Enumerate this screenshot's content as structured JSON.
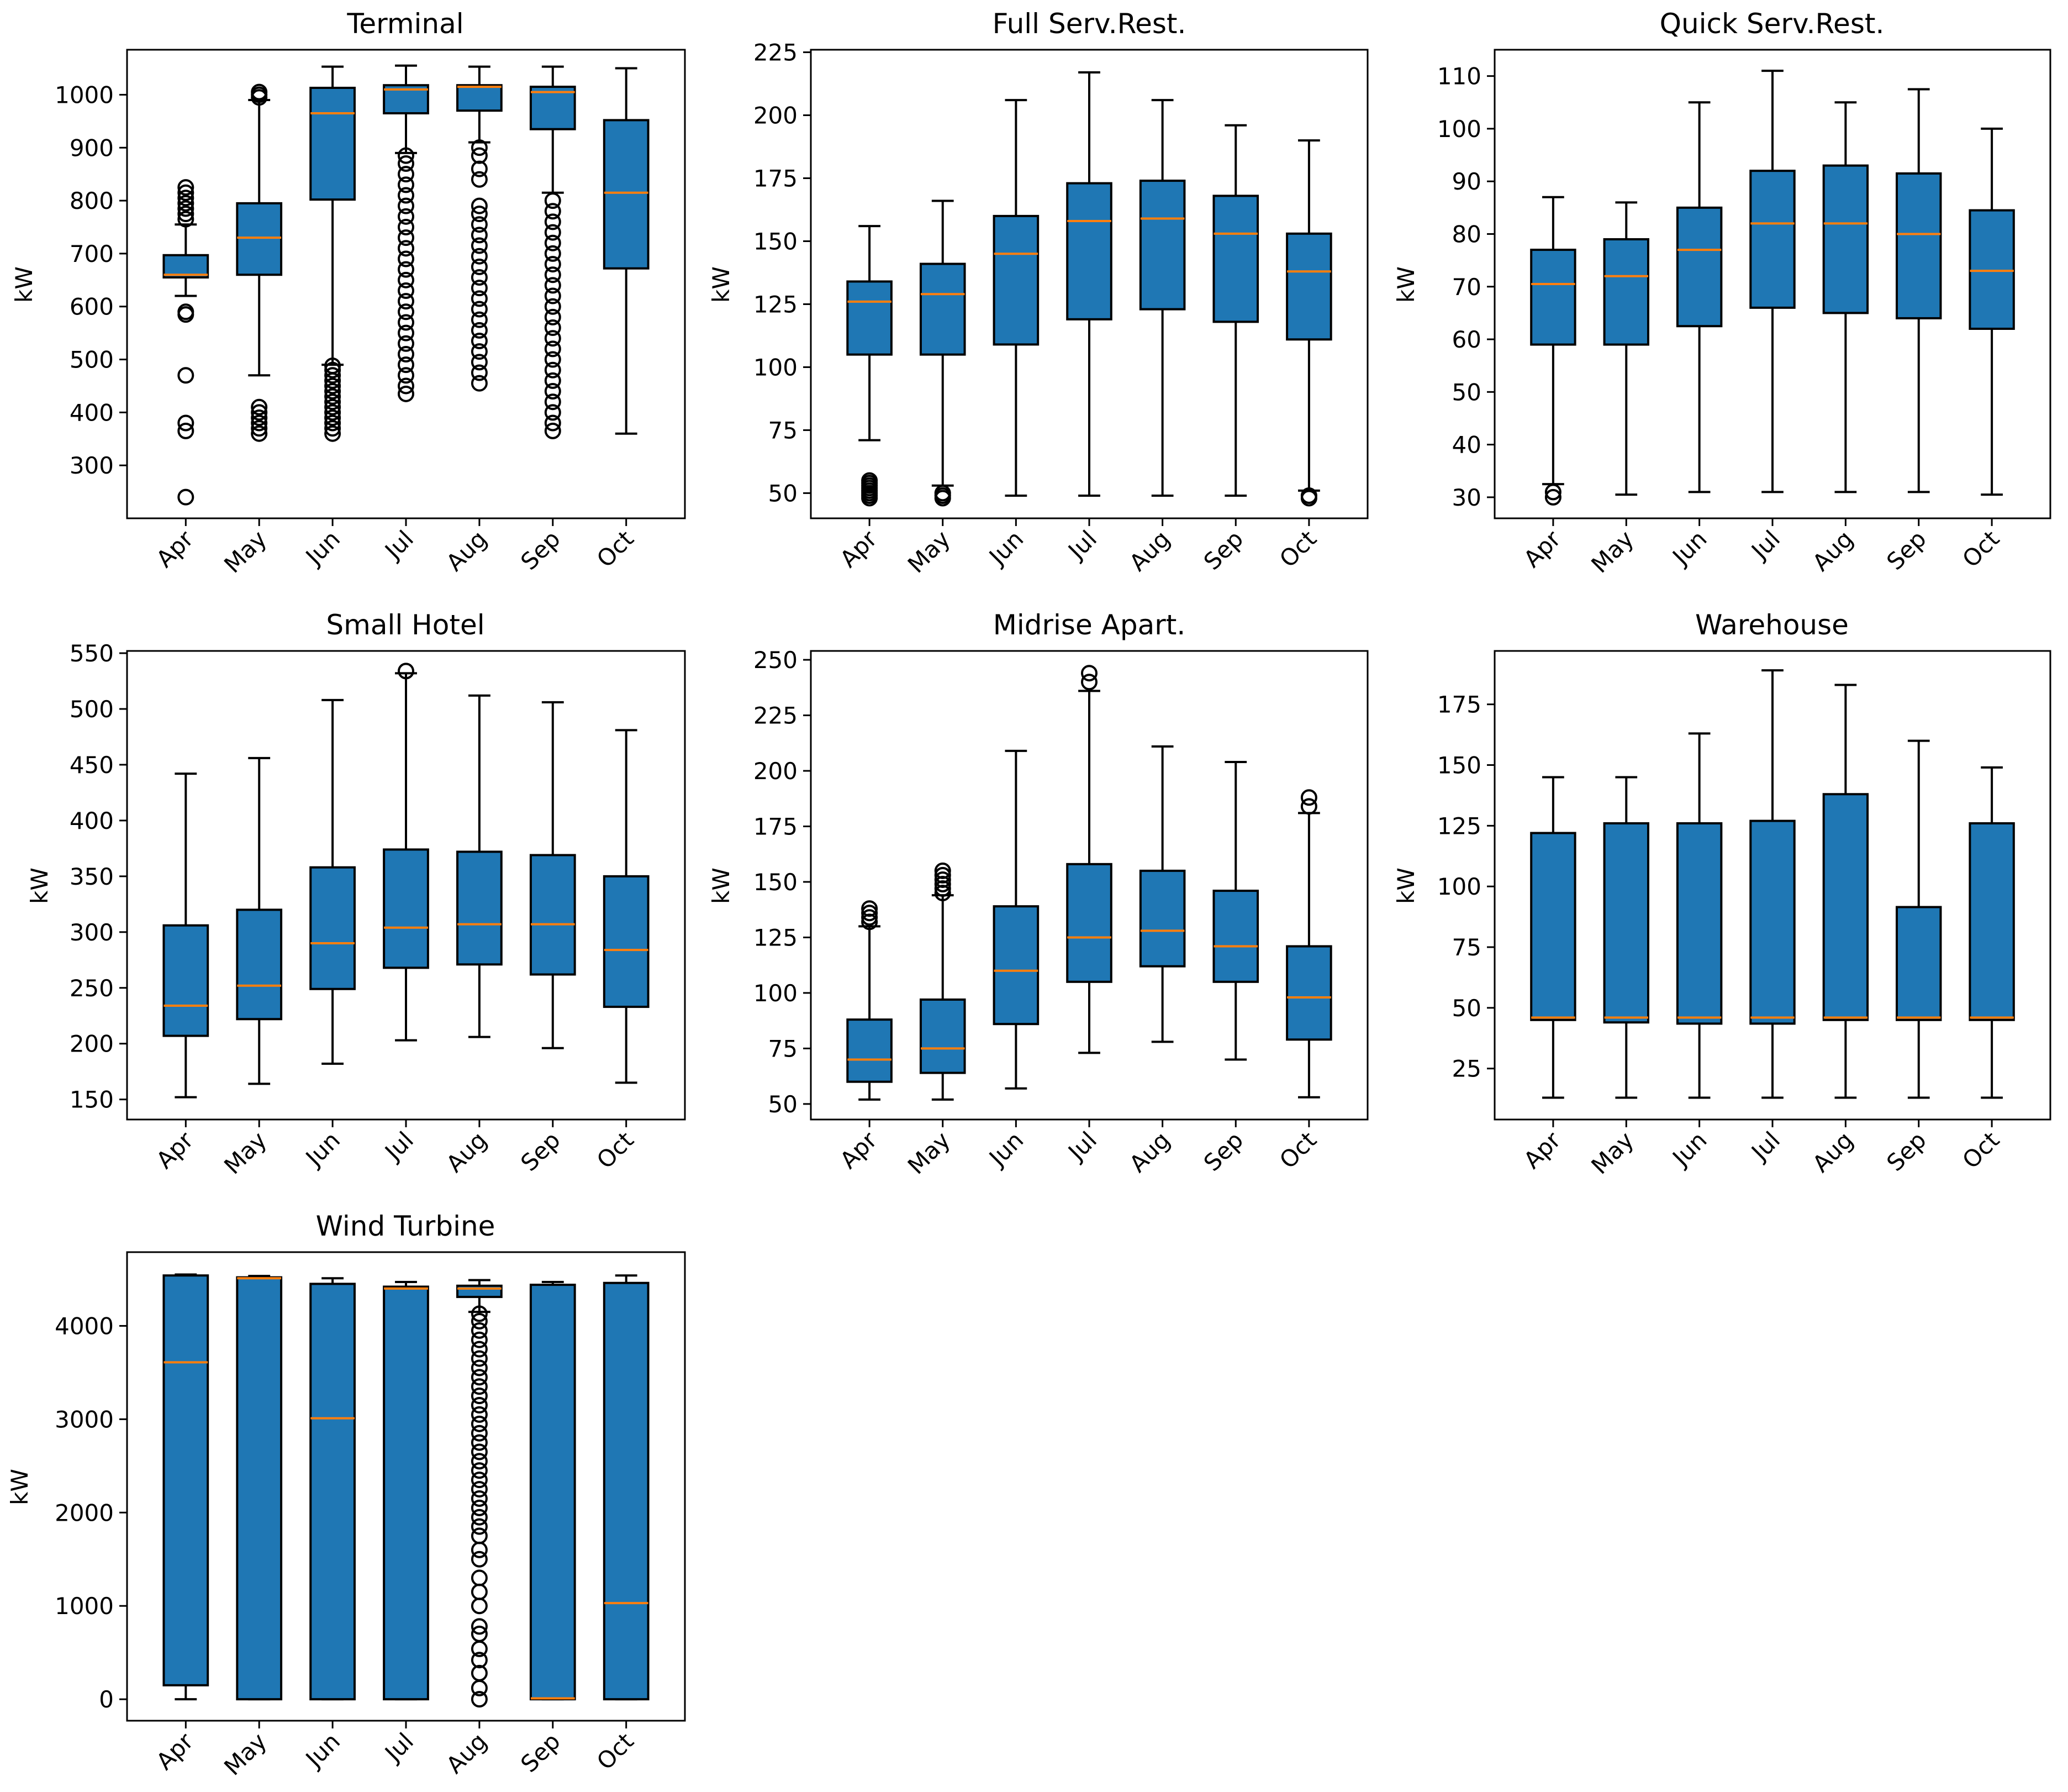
{
  "figure": {
    "months": [
      "Apr",
      "May",
      "Jun",
      "Jul",
      "Aug",
      "Sep",
      "Oct"
    ]
  },
  "colors": {
    "box": "#1f77b4",
    "median": "#ff7f0e",
    "edge": "#000000"
  },
  "chart_data": [
    {
      "type": "boxplot",
      "title": "Terminal",
      "ylabel": "kW",
      "ylim": [
        200,
        1085
      ],
      "yticks": [
        300,
        400,
        500,
        600,
        700,
        800,
        900,
        1000
      ],
      "categories": [
        "Apr",
        "May",
        "Jun",
        "Jul",
        "Aug",
        "Sep",
        "Oct"
      ],
      "boxes": [
        {
          "whislo": 620,
          "q1": 655,
          "med": 660,
          "q3": 697,
          "whishi": 755,
          "fliers": [
            240,
            365,
            380,
            470,
            585,
            590,
            765,
            775,
            785,
            795,
            805,
            815,
            825
          ]
        },
        {
          "whislo": 470,
          "q1": 660,
          "med": 730,
          "q3": 795,
          "whishi": 990,
          "fliers": [
            360,
            370,
            380,
            390,
            400,
            410,
            995,
            1000,
            1005
          ]
        },
        {
          "whislo": 490,
          "q1": 802,
          "med": 965,
          "q3": 1013,
          "whishi": 1053,
          "fliers": [
            360,
            370,
            380,
            390,
            400,
            410,
            420,
            430,
            440,
            450,
            460,
            470,
            480,
            488
          ]
        },
        {
          "whislo": 890,
          "q1": 965,
          "med": 1010,
          "q3": 1018,
          "whishi": 1055,
          "fliers": [
            435,
            450,
            470,
            490,
            510,
            530,
            550,
            570,
            590,
            610,
            630,
            650,
            670,
            690,
            710,
            730,
            750,
            770,
            790,
            810,
            830,
            850,
            870,
            885
          ]
        },
        {
          "whislo": 910,
          "q1": 970,
          "med": 1015,
          "q3": 1018,
          "whishi": 1053,
          "fliers": [
            455,
            475,
            495,
            515,
            535,
            555,
            575,
            595,
            615,
            635,
            655,
            675,
            695,
            715,
            735,
            755,
            775,
            790,
            840,
            860,
            885,
            900
          ]
        },
        {
          "whislo": 815,
          "q1": 935,
          "med": 1005,
          "q3": 1015,
          "whishi": 1053,
          "fliers": [
            365,
            380,
            400,
            420,
            440,
            460,
            480,
            500,
            520,
            540,
            560,
            580,
            600,
            620,
            640,
            660,
            680,
            700,
            720,
            740,
            760,
            780,
            800
          ]
        },
        {
          "whislo": 360,
          "q1": 672,
          "med": 815,
          "q3": 952,
          "whishi": 1050,
          "fliers": []
        }
      ]
    },
    {
      "type": "boxplot",
      "title": "Full Serv.Rest.",
      "ylabel": "kW",
      "ylim": [
        40,
        226
      ],
      "yticks": [
        50,
        75,
        100,
        125,
        150,
        175,
        200,
        225
      ],
      "categories": [
        "Apr",
        "May",
        "Jun",
        "Jul",
        "Aug",
        "Sep",
        "Oct"
      ],
      "boxes": [
        {
          "whislo": 71,
          "q1": 105,
          "med": 126,
          "q3": 134,
          "whishi": 156,
          "fliers": [
            48,
            49,
            50,
            51,
            52,
            53,
            54,
            55
          ]
        },
        {
          "whislo": 53,
          "q1": 105,
          "med": 129,
          "q3": 141,
          "whishi": 166,
          "fliers": [
            48,
            49,
            50
          ]
        },
        {
          "whislo": 49,
          "q1": 109,
          "med": 145,
          "q3": 160,
          "whishi": 206,
          "fliers": []
        },
        {
          "whislo": 49,
          "q1": 119,
          "med": 158,
          "q3": 173,
          "whishi": 217,
          "fliers": []
        },
        {
          "whislo": 49,
          "q1": 123,
          "med": 159,
          "q3": 174,
          "whishi": 206,
          "fliers": []
        },
        {
          "whislo": 49,
          "q1": 118,
          "med": 153,
          "q3": 168,
          "whishi": 196,
          "fliers": []
        },
        {
          "whislo": 51,
          "q1": 111,
          "med": 138,
          "q3": 153,
          "whishi": 190,
          "fliers": [
            48,
            49
          ]
        }
      ]
    },
    {
      "type": "boxplot",
      "title": "Quick Serv.Rest.",
      "ylabel": "kW",
      "ylim": [
        26,
        115
      ],
      "yticks": [
        30,
        40,
        50,
        60,
        70,
        80,
        90,
        100,
        110
      ],
      "categories": [
        "Apr",
        "May",
        "Jun",
        "Jul",
        "Aug",
        "Sep",
        "Oct"
      ],
      "boxes": [
        {
          "whislo": 32.5,
          "q1": 59,
          "med": 70.5,
          "q3": 77,
          "whishi": 87,
          "fliers": [
            30,
            31
          ]
        },
        {
          "whislo": 30.5,
          "q1": 59,
          "med": 72,
          "q3": 79,
          "whishi": 86,
          "fliers": []
        },
        {
          "whislo": 31,
          "q1": 62.5,
          "med": 77,
          "q3": 85,
          "whishi": 105,
          "fliers": []
        },
        {
          "whislo": 31,
          "q1": 66,
          "med": 82,
          "q3": 92,
          "whishi": 111,
          "fliers": []
        },
        {
          "whislo": 31,
          "q1": 65,
          "med": 82,
          "q3": 93,
          "whishi": 105,
          "fliers": []
        },
        {
          "whislo": 31,
          "q1": 64,
          "med": 80,
          "q3": 91.5,
          "whishi": 107.5,
          "fliers": []
        },
        {
          "whislo": 30.5,
          "q1": 62,
          "med": 73,
          "q3": 84.5,
          "whishi": 100,
          "fliers": []
        }
      ]
    },
    {
      "type": "boxplot",
      "title": "Small Hotel",
      "ylabel": "kW",
      "ylim": [
        132,
        552
      ],
      "yticks": [
        150,
        200,
        250,
        300,
        350,
        400,
        450,
        500,
        550
      ],
      "categories": [
        "Apr",
        "May",
        "Jun",
        "Jul",
        "Aug",
        "Sep",
        "Oct"
      ],
      "boxes": [
        {
          "whislo": 152,
          "q1": 207,
          "med": 234,
          "q3": 306,
          "whishi": 442,
          "fliers": []
        },
        {
          "whislo": 164,
          "q1": 222,
          "med": 252,
          "q3": 320,
          "whishi": 456,
          "fliers": []
        },
        {
          "whislo": 182,
          "q1": 249,
          "med": 290,
          "q3": 358,
          "whishi": 508,
          "fliers": []
        },
        {
          "whislo": 203,
          "q1": 268,
          "med": 304,
          "q3": 374,
          "whishi": 532,
          "fliers": [
            534
          ]
        },
        {
          "whislo": 206,
          "q1": 271,
          "med": 307,
          "q3": 372,
          "whishi": 512,
          "fliers": []
        },
        {
          "whislo": 196,
          "q1": 262,
          "med": 307,
          "q3": 369,
          "whishi": 506,
          "fliers": []
        },
        {
          "whislo": 165,
          "q1": 233,
          "med": 284,
          "q3": 350,
          "whishi": 481,
          "fliers": []
        }
      ]
    },
    {
      "type": "boxplot",
      "title": "Midrise Apart.",
      "ylabel": "kW",
      "ylim": [
        43,
        254
      ],
      "yticks": [
        50,
        75,
        100,
        125,
        150,
        175,
        200,
        225,
        250
      ],
      "categories": [
        "Apr",
        "May",
        "Jun",
        "Jul",
        "Aug",
        "Sep",
        "Oct"
      ],
      "boxes": [
        {
          "whislo": 52,
          "q1": 60,
          "med": 70,
          "q3": 88,
          "whishi": 130,
          "fliers": [
            132,
            134,
            136,
            138
          ]
        },
        {
          "whislo": 52,
          "q1": 64,
          "med": 75,
          "q3": 97,
          "whishi": 144,
          "fliers": [
            145,
            147,
            149,
            151,
            153,
            155
          ]
        },
        {
          "whislo": 57,
          "q1": 86,
          "med": 110,
          "q3": 139,
          "whishi": 209,
          "fliers": []
        },
        {
          "whislo": 73,
          "q1": 105,
          "med": 125,
          "q3": 158,
          "whishi": 236,
          "fliers": [
            240,
            244
          ]
        },
        {
          "whislo": 78,
          "q1": 112,
          "med": 128,
          "q3": 155,
          "whishi": 211,
          "fliers": []
        },
        {
          "whislo": 70,
          "q1": 105,
          "med": 121,
          "q3": 146,
          "whishi": 204,
          "fliers": []
        },
        {
          "whislo": 53,
          "q1": 79,
          "med": 98,
          "q3": 121,
          "whishi": 181,
          "fliers": [
            184,
            188
          ]
        }
      ]
    },
    {
      "type": "boxplot",
      "title": "Warehouse",
      "ylabel": "kW",
      "ylim": [
        4,
        197
      ],
      "yticks": [
        25,
        50,
        75,
        100,
        125,
        150,
        175
      ],
      "categories": [
        "Apr",
        "May",
        "Jun",
        "Jul",
        "Aug",
        "Sep",
        "Oct"
      ],
      "boxes": [
        {
          "whislo": 13,
          "q1": 45,
          "med": 46,
          "q3": 122,
          "whishi": 145,
          "fliers": []
        },
        {
          "whislo": 13,
          "q1": 44,
          "med": 46,
          "q3": 126,
          "whishi": 145,
          "fliers": []
        },
        {
          "whislo": 13,
          "q1": 43.5,
          "med": 46,
          "q3": 126,
          "whishi": 163,
          "fliers": []
        },
        {
          "whislo": 13,
          "q1": 43.5,
          "med": 46,
          "q3": 127,
          "whishi": 189,
          "fliers": []
        },
        {
          "whislo": 13,
          "q1": 45,
          "med": 46,
          "q3": 138,
          "whishi": 183,
          "fliers": []
        },
        {
          "whislo": 13,
          "q1": 45,
          "med": 46,
          "q3": 91.5,
          "whishi": 160,
          "fliers": []
        },
        {
          "whislo": 13,
          "q1": 45,
          "med": 46,
          "q3": 126,
          "whishi": 149,
          "fliers": []
        }
      ]
    },
    {
      "type": "boxplot",
      "title": "Wind Turbine",
      "ylabel": "kW",
      "ylim": [
        -230,
        4790
      ],
      "yticks": [
        0,
        1000,
        2000,
        3000,
        4000
      ],
      "categories": [
        "Apr",
        "May",
        "Jun",
        "Jul",
        "Aug",
        "Sep",
        "Oct"
      ],
      "boxes": [
        {
          "whislo": 0,
          "q1": 150,
          "med": 3610,
          "q3": 4540,
          "whishi": 4550,
          "fliers": []
        },
        {
          "whislo": 0,
          "q1": 0,
          "med": 4510,
          "q3": 4520,
          "whishi": 4535,
          "fliers": []
        },
        {
          "whislo": 0,
          "q1": 0,
          "med": 3010,
          "q3": 4450,
          "whishi": 4510,
          "fliers": []
        },
        {
          "whislo": 0,
          "q1": 0,
          "med": 4400,
          "q3": 4420,
          "whishi": 4470,
          "fliers": []
        },
        {
          "whislo": 4150,
          "q1": 4310,
          "med": 4400,
          "q3": 4430,
          "whishi": 4490,
          "fliers": [
            0,
            120,
            280,
            420,
            540,
            700,
            780,
            1000,
            1150,
            1300,
            1500,
            1600,
            1750,
            1850,
            1950,
            2050,
            2150,
            2250,
            2350,
            2450,
            2550,
            2650,
            2750,
            2850,
            2950,
            3050,
            3150,
            3250,
            3350,
            3450,
            3550,
            3650,
            3750,
            3850,
            3950,
            4050,
            4130
          ]
        },
        {
          "whislo": 0,
          "q1": 0,
          "med": 10,
          "q3": 4440,
          "whishi": 4470,
          "fliers": []
        },
        {
          "whislo": 0,
          "q1": 0,
          "med": 1030,
          "q3": 4460,
          "whishi": 4540,
          "fliers": []
        }
      ]
    }
  ]
}
